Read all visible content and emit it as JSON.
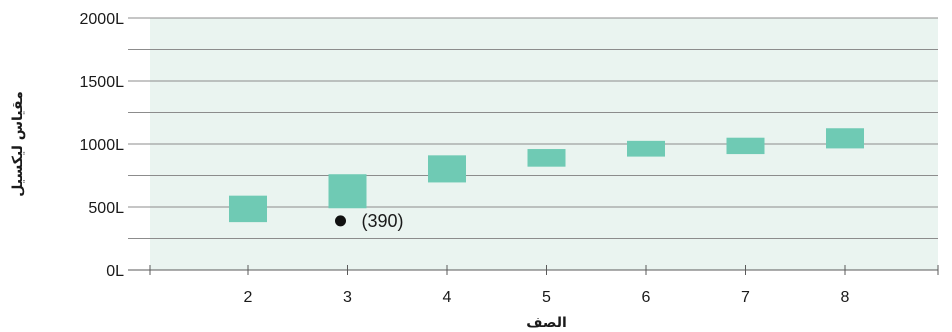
{
  "chart_data": {
    "type": "box",
    "xlabel": "الصف",
    "ylabel": "مقياس ليكسيل",
    "x_ticks": [
      2,
      3,
      4,
      5,
      6,
      7,
      8
    ],
    "y_ticks": [
      0,
      500,
      1000,
      1500,
      2000
    ],
    "y_tick_labels": [
      "0L",
      "500L",
      "1000L",
      "1500L",
      "2000L"
    ],
    "xlim": [
      1,
      9
    ],
    "ylim": [
      0,
      2000
    ],
    "y_gridlines": [
      0,
      250,
      500,
      750,
      1000,
      1250,
      1500,
      1750,
      2000
    ],
    "boxes": [
      {
        "grade": 2,
        "low": 380,
        "high": 590
      },
      {
        "grade": 3,
        "low": 490,
        "high": 760
      },
      {
        "grade": 4,
        "low": 695,
        "high": 910
      },
      {
        "grade": 5,
        "low": 820,
        "high": 960
      },
      {
        "grade": 6,
        "low": 900,
        "high": 1025
      },
      {
        "grade": 7,
        "low": 920,
        "high": 1050
      },
      {
        "grade": 8,
        "low": 965,
        "high": 1125
      }
    ],
    "annotations": [
      {
        "grade": 3,
        "value": 390,
        "label": "(390)"
      }
    ],
    "colors": {
      "box": "#6fcab4",
      "plot_background": "#eaf4f0",
      "grid": "#8c8c8c",
      "axis": "#5a5a5a",
      "point": "#111111"
    },
    "grid": true
  }
}
